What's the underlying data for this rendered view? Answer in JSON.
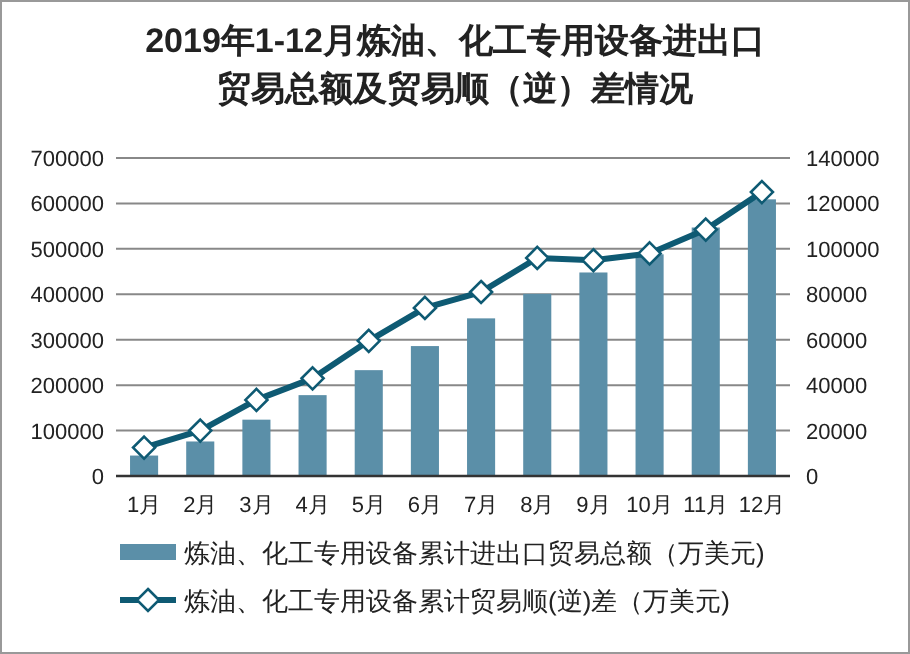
{
  "chart_data": {
    "type": "bar",
    "title": "2019年1-12月炼油、化工专用设备进出口贸易总额及贸易顺（逆）差情况",
    "categories": [
      "1月",
      "2月",
      "3月",
      "4月",
      "5月",
      "6月",
      "7月",
      "8月",
      "9月",
      "10月",
      "11月",
      "12月"
    ],
    "series": [
      {
        "name": "炼油、化工专用设备累计进出口贸易总额（万美元)",
        "color": "#5b8fa8",
        "values": [
          45000,
          76000,
          124000,
          178000,
          233000,
          286000,
          347000,
          401000,
          448000,
          488000,
          547000,
          609000
        ]
      },
      {
        "name": "炼油、化工专用设备累计贸易顺(逆)差（万美元)",
        "type": "line",
        "axis": "y2",
        "color": "#0e5a73",
        "marker": "diamond",
        "values": [
          12500,
          20000,
          33500,
          43000,
          59500,
          74000,
          81000,
          96000,
          95000,
          98000,
          108500,
          125000
        ]
      }
    ],
    "ylim": [
      0,
      700000
    ],
    "yticks": [
      0,
      100000,
      200000,
      300000,
      400000,
      500000,
      600000,
      700000
    ],
    "y2lim": [
      0,
      140000
    ],
    "y2ticks": [
      0,
      20000,
      40000,
      60000,
      80000,
      100000,
      120000,
      140000
    ],
    "grid": "y",
    "legend": "bottom"
  }
}
